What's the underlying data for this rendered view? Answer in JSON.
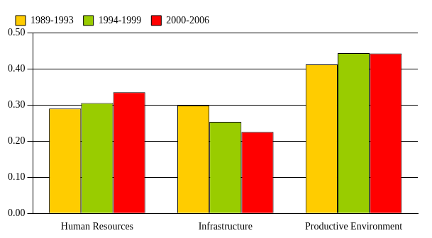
{
  "chart_data": {
    "type": "bar",
    "categories": [
      "Human Resources",
      "Infrastructure",
      "Productive Environment"
    ],
    "series": [
      {
        "name": "1989-1993",
        "color": "#ffcc00",
        "values": [
          0.29,
          0.298,
          0.412
        ]
      },
      {
        "name": "1994-1999",
        "color": "#99cc00",
        "values": [
          0.305,
          0.253,
          0.443
        ]
      },
      {
        "name": "2000-2006",
        "color": "#ff0000",
        "values": [
          0.335,
          0.225,
          0.442
        ]
      }
    ],
    "ylim": [
      0,
      0.5
    ],
    "yticks": [
      {
        "value": 0,
        "label": "0.00"
      },
      {
        "value": 0.1,
        "label": "0.10"
      },
      {
        "value": 0.2,
        "label": "0.20"
      },
      {
        "value": 0.3,
        "label": "0.30"
      },
      {
        "value": 0.4,
        "label": "0.40"
      },
      {
        "value": 0.5,
        "label": "0.50"
      }
    ],
    "grid": true,
    "legend": "upper left"
  }
}
